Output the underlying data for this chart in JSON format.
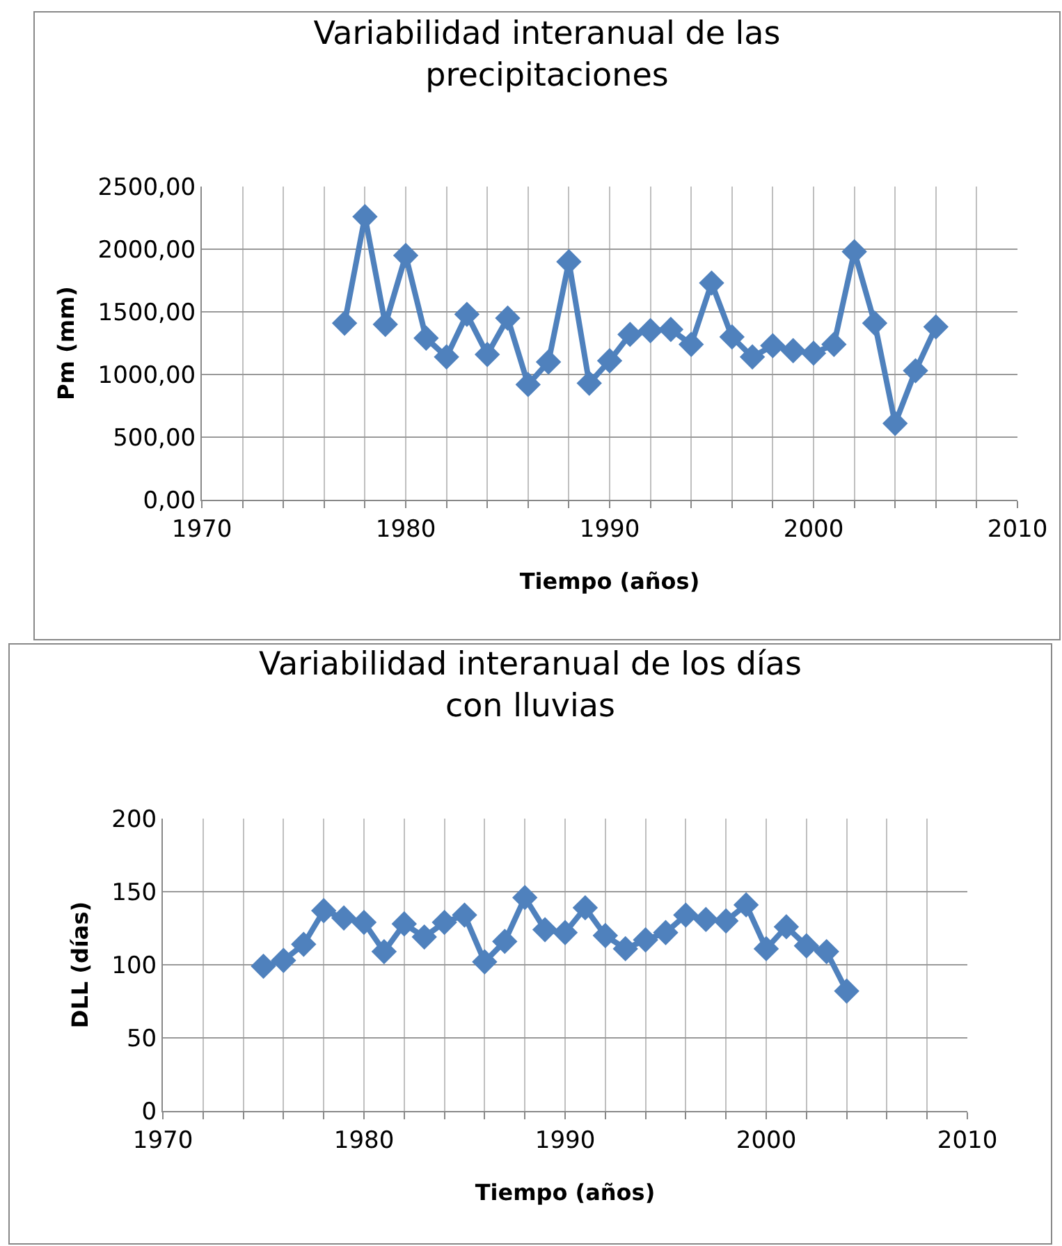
{
  "chart_data": [
    {
      "type": "line",
      "title": "Variabilidad interanual de las precipitaciones",
      "xlabel": "Tiempo (años)",
      "ylabel": "Pm (mm)",
      "x": [
        1977,
        1978,
        1979,
        1980,
        1981,
        1982,
        1983,
        1984,
        1985,
        1986,
        1987,
        1988,
        1989,
        1990,
        1991,
        1992,
        1993,
        1994,
        1995,
        1996,
        1997,
        1998,
        1999,
        2000,
        2001,
        2002,
        2003,
        2004,
        2005,
        2006
      ],
      "series": [
        {
          "color": "#4f81bd",
          "values": [
            1410,
            2260,
            1400,
            1950,
            1290,
            1140,
            1480,
            1160,
            1450,
            920,
            1100,
            1900,
            930,
            1110,
            1320,
            1350,
            1360,
            1240,
            1730,
            1300,
            1140,
            1230,
            1190,
            1170,
            1240,
            1980,
            1410,
            610,
            1030,
            1380
          ]
        }
      ],
      "xlim": [
        1970,
        2010
      ],
      "xticks": [
        1970,
        {
          "value": 1972,
          "label": null
        },
        {
          "value": 1974,
          "label": null
        },
        {
          "value": 1976,
          "label": null
        },
        {
          "value": 1978,
          "label": null
        },
        1980,
        {
          "value": 1982,
          "label": null
        },
        {
          "value": 1984,
          "label": null
        },
        {
          "value": 1986,
          "label": null
        },
        {
          "value": 1988,
          "label": null
        },
        1990,
        {
          "value": 1992,
          "label": null
        },
        {
          "value": 1994,
          "label": null
        },
        {
          "value": 1996,
          "label": null
        },
        {
          "value": 1998,
          "label": null
        },
        2000,
        {
          "value": 2002,
          "label": null
        },
        {
          "value": 2004,
          "label": null
        },
        {
          "value": 2006,
          "label": null
        },
        {
          "value": 2008,
          "label": null
        },
        2010
      ],
      "ylim": [
        0,
        2500
      ],
      "yticks": [
        {
          "value": 0,
          "label": "0,00"
        },
        {
          "value": 500,
          "label": "500,00"
        },
        {
          "value": 1000,
          "label": "1000,00"
        },
        {
          "value": 1500,
          "label": "1500,00"
        },
        {
          "value": 2000,
          "label": "2000,00"
        },
        {
          "value": 2500,
          "label": "2500,00"
        }
      ],
      "grid": true,
      "marker": "diamond",
      "line_style": "solid"
    },
    {
      "type": "line",
      "title": "Variabilidad interanual de los días con lluvias",
      "xlabel": "Tiempo (años)",
      "ylabel": "DLL (días)",
      "x": [
        1975,
        1976,
        1977,
        1978,
        1979,
        1980,
        1981,
        1982,
        1983,
        1984,
        1985,
        1986,
        1987,
        1988,
        1989,
        1990,
        1991,
        1992,
        1993,
        1994,
        1995,
        1996,
        1997,
        1998,
        1999,
        2000,
        2001,
        2002,
        2003,
        2004
      ],
      "series": [
        {
          "color": "#4f81bd",
          "values": [
            99,
            103,
            114,
            137,
            132,
            129,
            109,
            128,
            119,
            129,
            134,
            102,
            116,
            146,
            124,
            122,
            139,
            120,
            111,
            117,
            122,
            134,
            131,
            130,
            141,
            111,
            126,
            113,
            109,
            82
          ]
        }
      ],
      "xlim": [
        1970,
        2010
      ],
      "xticks": [
        1970,
        {
          "value": 1972,
          "label": null
        },
        {
          "value": 1974,
          "label": null
        },
        {
          "value": 1976,
          "label": null
        },
        {
          "value": 1978,
          "label": null
        },
        1980,
        {
          "value": 1982,
          "label": null
        },
        {
          "value": 1984,
          "label": null
        },
        {
          "value": 1986,
          "label": null
        },
        {
          "value": 1988,
          "label": null
        },
        1990,
        {
          "value": 1992,
          "label": null
        },
        {
          "value": 1994,
          "label": null
        },
        {
          "value": 1996,
          "label": null
        },
        {
          "value": 1998,
          "label": null
        },
        2000,
        {
          "value": 2002,
          "label": null
        },
        {
          "value": 2004,
          "label": null
        },
        {
          "value": 2006,
          "label": null
        },
        {
          "value": 2008,
          "label": null
        },
        2010
      ],
      "ylim": [
        0,
        200
      ],
      "yticks": [
        0,
        50,
        100,
        150,
        200
      ],
      "grid": true,
      "marker": "diamond",
      "line_style": "solid"
    }
  ]
}
